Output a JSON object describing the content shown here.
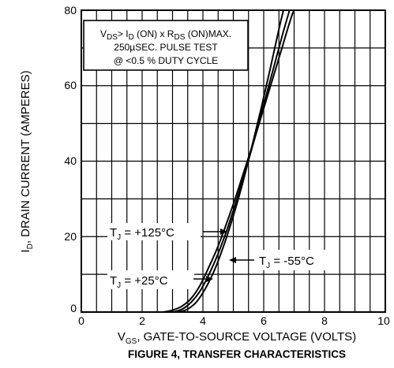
{
  "chart_data": {
    "type": "line",
    "title": "FIGURE 4, TRANSFER CHARACTERISTICS",
    "xlabel": {
      "main": "V",
      "sub": "GS",
      "rest": ", GATE-TO-SOURCE VOLTAGE (VOLTS)"
    },
    "ylabel": {
      "main": "I",
      "sub": "D",
      "rest": ", DRAIN CURRENT (AMPERES)"
    },
    "xlim": [
      0,
      10
    ],
    "ylim": [
      0,
      80
    ],
    "x_ticks": [
      "0",
      "2",
      "4",
      "6",
      "8",
      "10"
    ],
    "y_ticks": [
      "0",
      "20",
      "40",
      "60",
      "80"
    ],
    "grid": true,
    "conditions": {
      "line1": {
        "a": "V",
        "a_sub": "DS",
        "b": "> I",
        "b_sub": "D",
        "c": " (ON)  x   R",
        "c_sub": "DS",
        "d": " (ON)MAX."
      },
      "line2": "250µSEC.  PULSE  TEST",
      "line3": "@  <0.5  %  DUTY  CYCLE"
    },
    "series": [
      {
        "label": {
          "main": "T",
          "sub": "J",
          "rest": " = +125°C"
        },
        "points": [
          [
            2.7,
            0
          ],
          [
            3.0,
            0.5
          ],
          [
            3.3,
            1.5
          ],
          [
            3.6,
            3.5
          ],
          [
            3.9,
            7
          ],
          [
            4.2,
            12
          ],
          [
            4.5,
            17.5
          ],
          [
            4.8,
            24
          ],
          [
            5.1,
            31
          ],
          [
            5.4,
            38.5
          ],
          [
            5.7,
            46
          ],
          [
            6.0,
            54
          ],
          [
            6.3,
            62
          ],
          [
            6.6,
            70
          ],
          [
            6.9,
            78
          ],
          [
            7.0,
            80
          ]
        ]
      },
      {
        "label": {
          "main": "T",
          "sub": "J",
          "rest": " = +25°C"
        },
        "points": [
          [
            3.0,
            0
          ],
          [
            3.3,
            0.7
          ],
          [
            3.6,
            2.5
          ],
          [
            3.9,
            5.5
          ],
          [
            4.2,
            10
          ],
          [
            4.5,
            15.5
          ],
          [
            4.8,
            22
          ],
          [
            5.1,
            29.5
          ],
          [
            5.4,
            37.5
          ],
          [
            5.7,
            46
          ],
          [
            6.0,
            55
          ],
          [
            6.3,
            64
          ],
          [
            6.6,
            73
          ],
          [
            6.85,
            80
          ]
        ]
      },
      {
        "label": {
          "main": "T",
          "sub": "J",
          "rest": " = -55°C"
        },
        "points": [
          [
            3.2,
            0
          ],
          [
            3.5,
            0.8
          ],
          [
            3.8,
            2.8
          ],
          [
            4.1,
            6.5
          ],
          [
            4.4,
            11.5
          ],
          [
            4.7,
            18
          ],
          [
            5.0,
            25.5
          ],
          [
            5.3,
            34
          ],
          [
            5.6,
            43.5
          ],
          [
            5.9,
            53.5
          ],
          [
            6.2,
            64
          ],
          [
            6.5,
            75
          ],
          [
            6.65,
            80
          ]
        ]
      }
    ]
  }
}
